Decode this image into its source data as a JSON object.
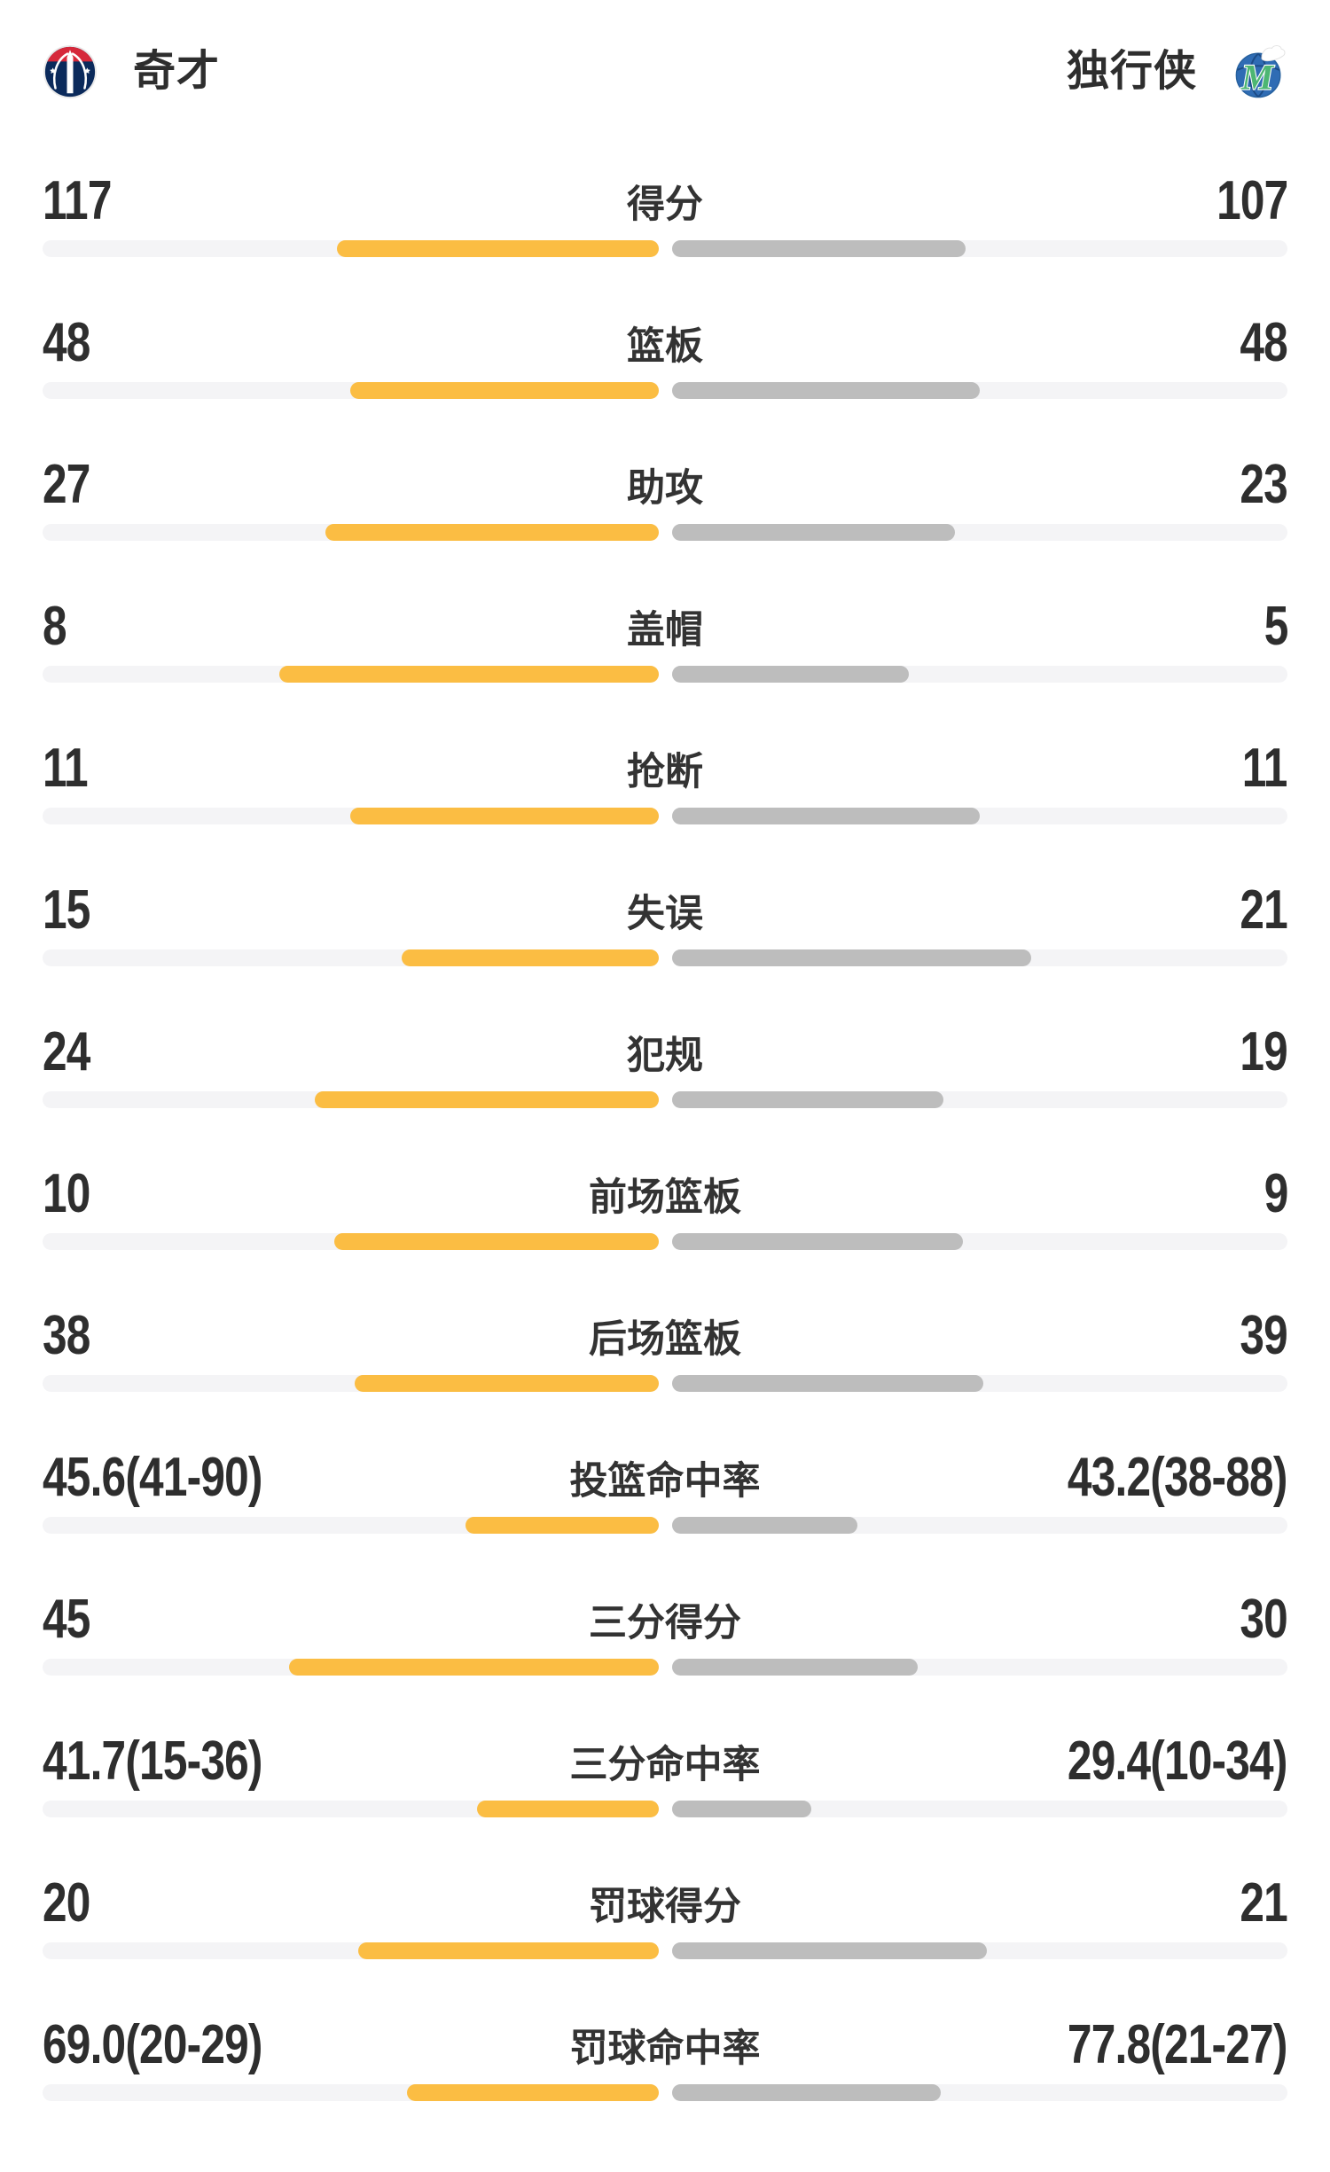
{
  "header": {
    "home": {
      "name": "奇才",
      "logo_icon": "wizards-logo-icon"
    },
    "away": {
      "name": "独行侠",
      "logo_icon": "mavericks-logo-icon"
    }
  },
  "colors": {
    "home_bar": "#fbbd43",
    "away_bar": "#bdbdbd",
    "bar_track": "#f4f4f6",
    "text": "#2e2e2e",
    "wizards_navy": "#0b2a5b",
    "wizards_red": "#d6283a",
    "mavericks_blue": "#2f6cb4",
    "mavericks_green": "#4db673"
  },
  "chart_data": {
    "type": "bar",
    "subtype": "head-to-head-comparison",
    "teams": {
      "home": "奇才",
      "away": "独行侠"
    },
    "legend_position": "none",
    "grid": false,
    "bar_rule": "fill fraction of each half-track = value / (home value + away value); for percentage rows = made / (made + attempts) of that side",
    "rows": [
      {
        "label": "得分",
        "left": {
          "text": "117",
          "value": 117
        },
        "right": {
          "text": "107",
          "value": 107
        }
      },
      {
        "label": "篮板",
        "left": {
          "text": "48",
          "value": 48
        },
        "right": {
          "text": "48",
          "value": 48
        }
      },
      {
        "label": "助攻",
        "left": {
          "text": "27",
          "value": 27
        },
        "right": {
          "text": "23",
          "value": 23
        }
      },
      {
        "label": "盖帽",
        "left": {
          "text": "8",
          "value": 8
        },
        "right": {
          "text": "5",
          "value": 5
        }
      },
      {
        "label": "抢断",
        "left": {
          "text": "11",
          "value": 11
        },
        "right": {
          "text": "11",
          "value": 11
        }
      },
      {
        "label": "失误",
        "left": {
          "text": "15",
          "value": 15
        },
        "right": {
          "text": "21",
          "value": 21
        }
      },
      {
        "label": "犯规",
        "left": {
          "text": "24",
          "value": 24
        },
        "right": {
          "text": "19",
          "value": 19
        }
      },
      {
        "label": "前场篮板",
        "left": {
          "text": "10",
          "value": 10
        },
        "right": {
          "text": "9",
          "value": 9
        }
      },
      {
        "label": "后场篮板",
        "left": {
          "text": "38",
          "value": 38
        },
        "right": {
          "text": "39",
          "value": 39
        }
      },
      {
        "label": "投篮命中率",
        "left": {
          "text": "45.6(41-90)",
          "value": 45.6,
          "made": 41,
          "att": 90
        },
        "right": {
          "text": "43.2(38-88)",
          "value": 43.2,
          "made": 38,
          "att": 88
        }
      },
      {
        "label": "三分得分",
        "left": {
          "text": "45",
          "value": 45
        },
        "right": {
          "text": "30",
          "value": 30
        }
      },
      {
        "label": "三分命中率",
        "left": {
          "text": "41.7(15-36)",
          "value": 41.7,
          "made": 15,
          "att": 36
        },
        "right": {
          "text": "29.4(10-34)",
          "value": 29.4,
          "made": 10,
          "att": 34
        }
      },
      {
        "label": "罚球得分",
        "left": {
          "text": "20",
          "value": 20
        },
        "right": {
          "text": "21",
          "value": 21
        }
      },
      {
        "label": "罚球命中率",
        "left": {
          "text": "69.0(20-29)",
          "value": 69.0,
          "made": 20,
          "att": 29
        },
        "right": {
          "text": "77.8(21-27)",
          "value": 77.8,
          "made": 21,
          "att": 27
        }
      }
    ]
  }
}
